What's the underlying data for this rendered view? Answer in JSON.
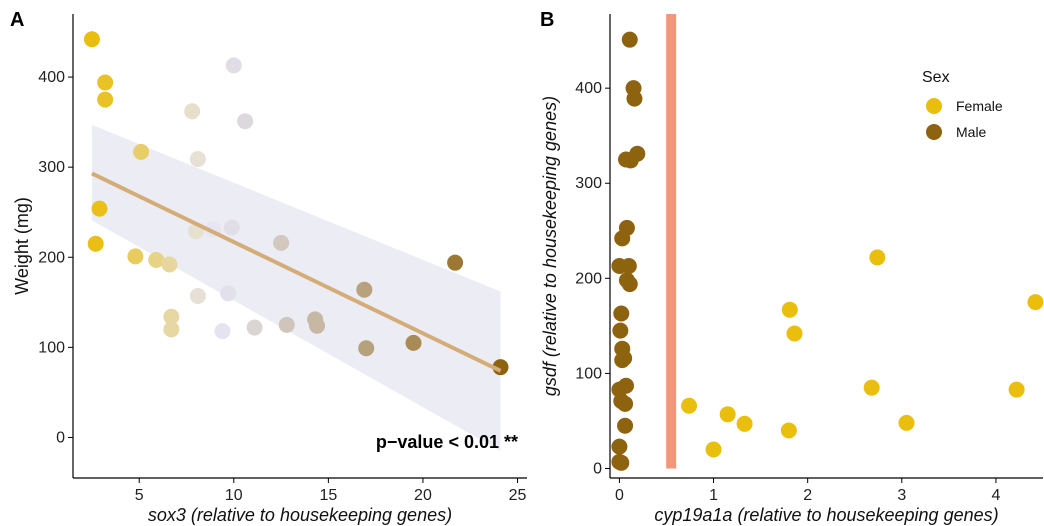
{
  "chart_data": [
    {
      "panel": "A",
      "type": "scatter",
      "xlabel": "sox3 (relative to housekeeping genes)",
      "ylabel": "Weight (mg)",
      "xlim": [
        1.5,
        25.5
      ],
      "ylim": [
        -45,
        470
      ],
      "xticks": [
        5,
        10,
        15,
        20,
        25
      ],
      "yticks": [
        0,
        100,
        200,
        300,
        400
      ],
      "grid": false,
      "annotation": "p−value < 0.01 **",
      "color_scale": {
        "low": "#E9BE0C",
        "mid": "#E6E6F5",
        "high": "#8E6310",
        "midpoint": 9
      },
      "points": [
        {
          "x": 2.5,
          "y": 442
        },
        {
          "x": 3.2,
          "y": 394
        },
        {
          "x": 3.2,
          "y": 375
        },
        {
          "x": 2.9,
          "y": 254
        },
        {
          "x": 2.7,
          "y": 215
        },
        {
          "x": 5.1,
          "y": 317
        },
        {
          "x": 4.8,
          "y": 201
        },
        {
          "x": 5.9,
          "y": 197
        },
        {
          "x": 6.6,
          "y": 192
        },
        {
          "x": 6.7,
          "y": 134
        },
        {
          "x": 6.7,
          "y": 120
        },
        {
          "x": 7.8,
          "y": 362
        },
        {
          "x": 8.1,
          "y": 309
        },
        {
          "x": 8.0,
          "y": 229
        },
        {
          "x": 8.9,
          "y": 231
        },
        {
          "x": 8.1,
          "y": 157
        },
        {
          "x": 9.4,
          "y": 118
        },
        {
          "x": 9.7,
          "y": 160
        },
        {
          "x": 9.9,
          "y": 233
        },
        {
          "x": 10.0,
          "y": 413
        },
        {
          "x": 10.6,
          "y": 351
        },
        {
          "x": 11.1,
          "y": 122
        },
        {
          "x": 12.5,
          "y": 216
        },
        {
          "x": 12.8,
          "y": 125
        },
        {
          "x": 14.3,
          "y": 131
        },
        {
          "x": 14.4,
          "y": 124
        },
        {
          "x": 16.9,
          "y": 164
        },
        {
          "x": 17.0,
          "y": 99
        },
        {
          "x": 19.5,
          "y": 105
        },
        {
          "x": 21.7,
          "y": 194
        },
        {
          "x": 24.1,
          "y": 78
        }
      ],
      "fit": {
        "x": [
          2.5,
          24.1
        ],
        "y": [
          293,
          74
        ]
      },
      "ci_band": {
        "x": [
          2.5,
          24.1
        ],
        "lower": [
          241,
          -15
        ],
        "upper": [
          347,
          162
        ]
      }
    },
    {
      "panel": "B",
      "type": "scatter",
      "xlabel": "cyp19a1a (relative to housekeeping genes)",
      "ylabel": "gsdf (relative to housekeeping genes)",
      "xlim": [
        -0.1,
        4.5
      ],
      "ylim": [
        -10,
        478
      ],
      "xticks": [
        0,
        1,
        2,
        3,
        4
      ],
      "yticks": [
        0,
        100,
        200,
        300,
        400
      ],
      "grid": false,
      "threshold_x": 0.55,
      "threshold_color": "#F5967A",
      "legend": {
        "title": "Sex",
        "placement": "top-right",
        "entries": [
          {
            "name": "Female",
            "color": "#E9BE0C"
          },
          {
            "name": "Male",
            "color": "#8E6310"
          }
        ]
      },
      "series": [
        {
          "name": "Female",
          "color": "#E9BE0C",
          "points": [
            {
              "x": 0.74,
              "y": 66
            },
            {
              "x": 1.15,
              "y": 57
            },
            {
              "x": 1.33,
              "y": 47
            },
            {
              "x": 1.0,
              "y": 20
            },
            {
              "x": 1.8,
              "y": 40
            },
            {
              "x": 1.81,
              "y": 167
            },
            {
              "x": 1.86,
              "y": 142
            },
            {
              "x": 2.74,
              "y": 222
            },
            {
              "x": 2.68,
              "y": 85
            },
            {
              "x": 3.05,
              "y": 48
            },
            {
              "x": 4.22,
              "y": 83
            },
            {
              "x": 4.42,
              "y": 175
            }
          ]
        },
        {
          "name": "Male",
          "color": "#8E6310",
          "points": [
            {
              "x": 0.11,
              "y": 451
            },
            {
              "x": 0.15,
              "y": 400
            },
            {
              "x": 0.16,
              "y": 389
            },
            {
              "x": 0.19,
              "y": 331
            },
            {
              "x": 0.07,
              "y": 325
            },
            {
              "x": 0.12,
              "y": 324
            },
            {
              "x": 0.08,
              "y": 253
            },
            {
              "x": 0.03,
              "y": 242
            },
            {
              "x": 0.0,
              "y": 213
            },
            {
              "x": 0.1,
              "y": 213
            },
            {
              "x": 0.08,
              "y": 198
            },
            {
              "x": 0.11,
              "y": 194
            },
            {
              "x": 0.02,
              "y": 163
            },
            {
              "x": 0.01,
              "y": 145
            },
            {
              "x": 0.03,
              "y": 126
            },
            {
              "x": 0.03,
              "y": 114
            },
            {
              "x": 0.05,
              "y": 116
            },
            {
              "x": 0.07,
              "y": 87
            },
            {
              "x": 0.0,
              "y": 83
            },
            {
              "x": 0.02,
              "y": 71
            },
            {
              "x": 0.06,
              "y": 68
            },
            {
              "x": 0.06,
              "y": 45
            },
            {
              "x": 0.0,
              "y": 23
            },
            {
              "x": 0.0,
              "y": 7
            },
            {
              "x": 0.02,
              "y": 6
            }
          ]
        }
      ]
    }
  ]
}
